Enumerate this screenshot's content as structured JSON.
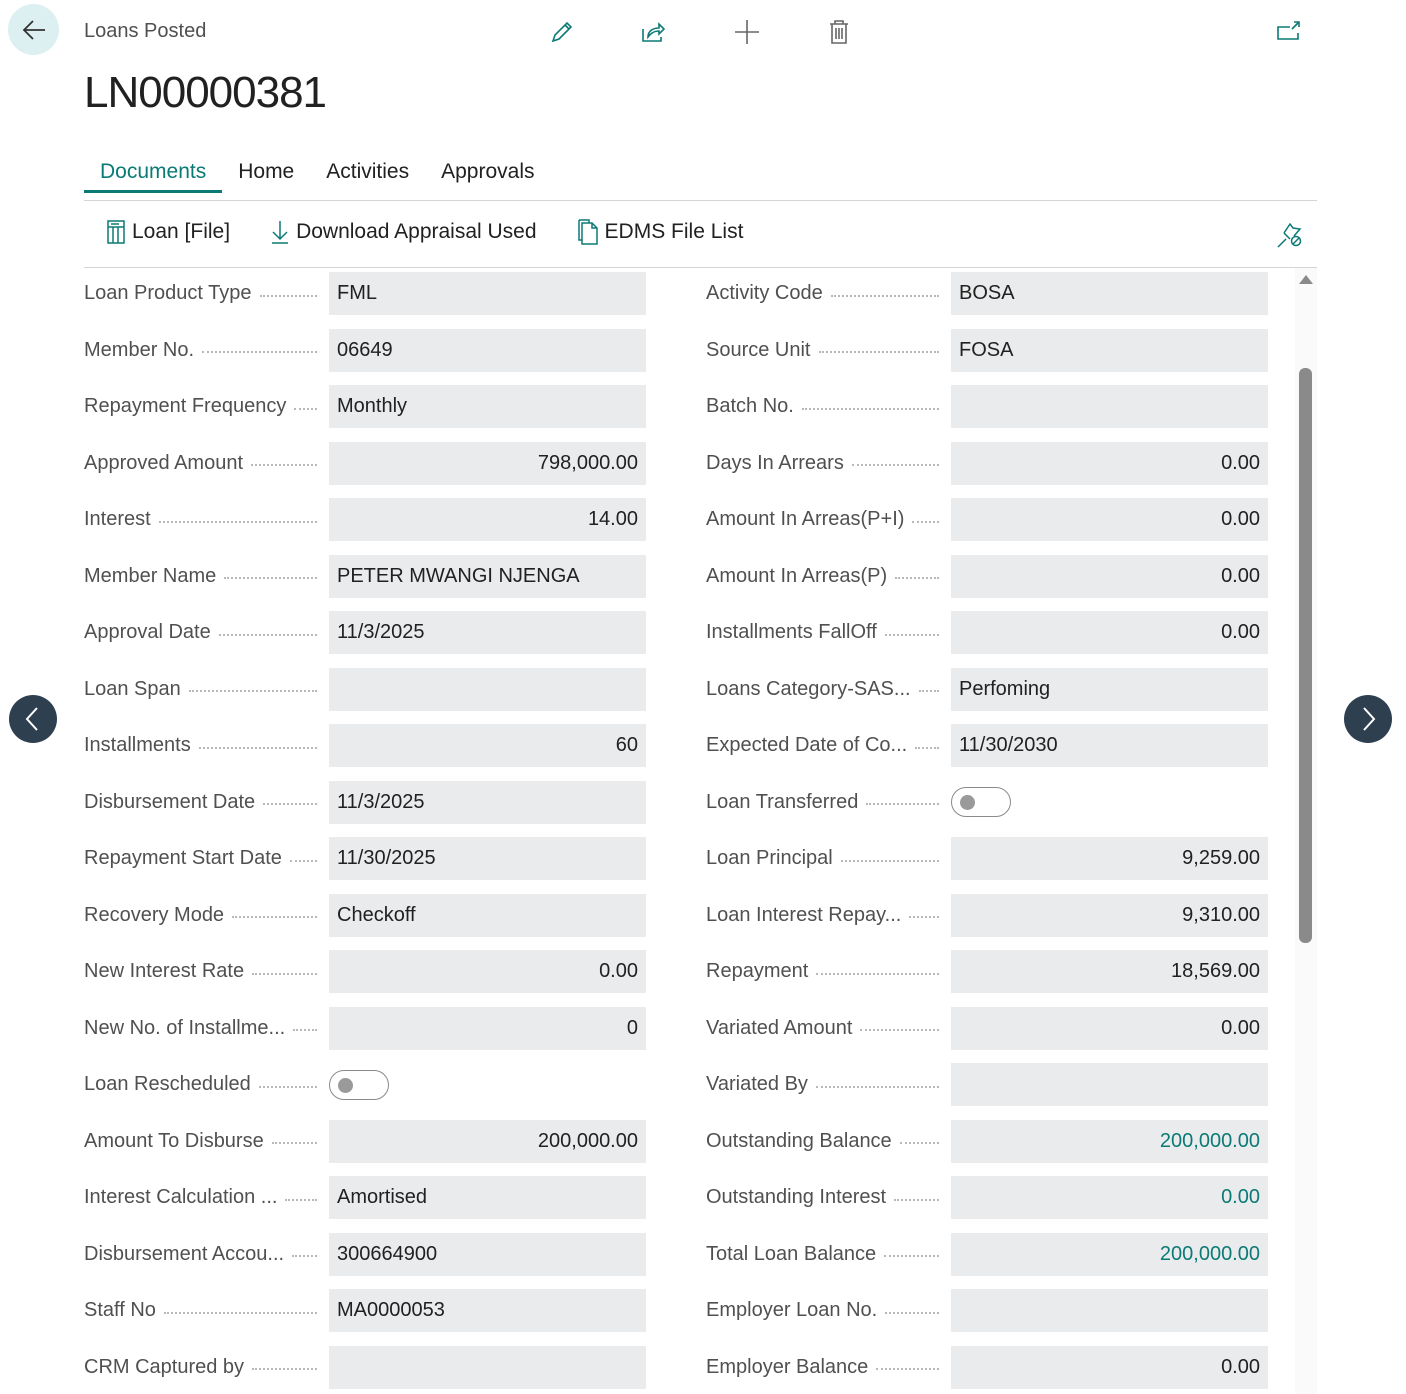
{
  "header": {
    "breadcrumb": "Loans Posted",
    "title": "LN00000381"
  },
  "toolbar_icons": [
    "pencil-icon",
    "share-icon",
    "plus-icon",
    "trash-icon",
    "open-new-window-icon"
  ],
  "tabs": [
    {
      "label": "Documents",
      "active": true
    },
    {
      "label": "Home"
    },
    {
      "label": "Activities"
    },
    {
      "label": "Approvals"
    }
  ],
  "actions": [
    {
      "label": "Loan [File]",
      "icon": "report-icon"
    },
    {
      "label": "Download Appraisal Used",
      "icon": "download-icon"
    },
    {
      "label": "EDMS File List",
      "icon": "document-icon"
    }
  ],
  "accent": "#0b7a75",
  "left_fields": [
    {
      "label": "Loan Product Type",
      "value": "FML"
    },
    {
      "label": "Member No.",
      "value": "06649"
    },
    {
      "label": "Repayment Frequency",
      "value": "Monthly"
    },
    {
      "label": "Approved Amount",
      "value": "798,000.00",
      "num": true
    },
    {
      "label": "Interest",
      "value": "14.00",
      "num": true
    },
    {
      "label": "Member Name",
      "value": "PETER MWANGI NJENGA"
    },
    {
      "label": "Approval Date",
      "value": "11/3/2025"
    },
    {
      "label": "Loan Span",
      "value": ""
    },
    {
      "label": "Installments",
      "value": "60",
      "num": true
    },
    {
      "label": "Disbursement Date",
      "value": "11/3/2025"
    },
    {
      "label": "Repayment Start Date",
      "value": "11/30/2025"
    },
    {
      "label": "Recovery Mode",
      "value": "Checkoff"
    },
    {
      "label": "New Interest Rate",
      "value": "0.00",
      "num": true
    },
    {
      "label": "New No. of Installme...",
      "value": "0",
      "num": true
    },
    {
      "label": "Loan Rescheduled",
      "toggle": true,
      "checked": false
    },
    {
      "label": "Amount To Disburse",
      "value": "200,000.00",
      "num": true
    },
    {
      "label": "Interest Calculation ...",
      "value": "Amortised"
    },
    {
      "label": "Disbursement Accou...",
      "value": "300664900"
    },
    {
      "label": "Staff No",
      "value": "MA0000053"
    },
    {
      "label": "CRM Captured by",
      "value": ""
    }
  ],
  "right_fields": [
    {
      "label": "Activity Code",
      "value": "BOSA"
    },
    {
      "label": "Source Unit",
      "value": "FOSA"
    },
    {
      "label": "Batch No.",
      "value": ""
    },
    {
      "label": "Days In Arrears",
      "value": "0.00",
      "num": true
    },
    {
      "label": "Amount In Arreas(P+I)",
      "value": "0.00",
      "num": true
    },
    {
      "label": "Amount In Arreas(P)",
      "value": "0.00",
      "num": true
    },
    {
      "label": "Installments FallOff",
      "value": "0.00",
      "num": true
    },
    {
      "label": "Loans Category-SAS...",
      "value": "Perfoming"
    },
    {
      "label": "Expected Date of Co...",
      "value": "11/30/2030"
    },
    {
      "label": "Loan Transferred",
      "toggle": true,
      "checked": false
    },
    {
      "label": "Loan Principal",
      "value": "9,259.00",
      "num": true
    },
    {
      "label": "Loan Interest Repay...",
      "value": "9,310.00",
      "num": true
    },
    {
      "label": "Repayment",
      "value": "18,569.00",
      "num": true
    },
    {
      "label": "Variated Amount",
      "value": "0.00",
      "num": true
    },
    {
      "label": "Variated By",
      "value": ""
    },
    {
      "label": "Outstanding Balance",
      "value": "200,000.00",
      "num": true,
      "link": true
    },
    {
      "label": "Outstanding Interest",
      "value": "0.00",
      "num": true,
      "link": true
    },
    {
      "label": "Total Loan Balance",
      "value": "200,000.00",
      "num": true,
      "link": true
    },
    {
      "label": "Employer Loan No.",
      "value": ""
    },
    {
      "label": "Employer Balance",
      "value": "0.00",
      "num": true
    }
  ]
}
